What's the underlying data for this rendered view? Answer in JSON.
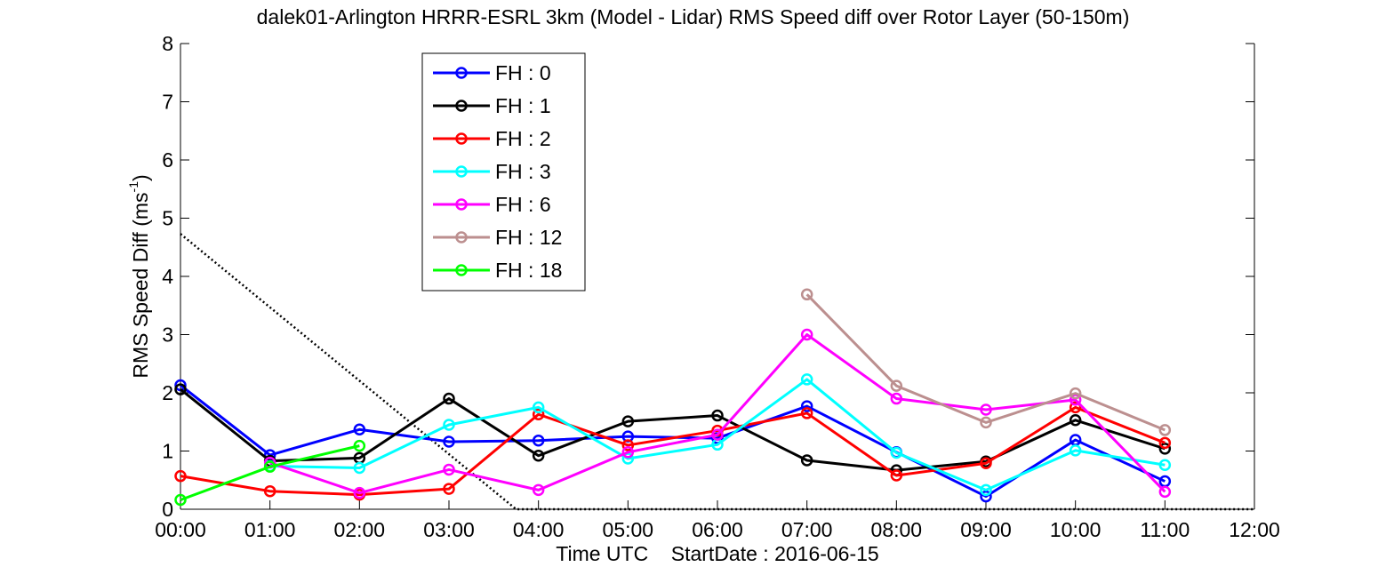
{
  "chart_data": {
    "type": "line",
    "title": "dalek01-Arlington HRRR-ESRL 3km (Model - Lidar) RMS Speed diff over Rotor Layer (50-150m)",
    "xlabel": "Time UTC    StartDate : 2016-06-15",
    "ylabel_main": "RMS Speed Diff (ms",
    "ylabel_sup": "-1",
    "ylabel_close": ")",
    "x_ticks": [
      "00:00",
      "01:00",
      "02:00",
      "03:00",
      "04:00",
      "05:00",
      "06:00",
      "07:00",
      "08:00",
      "09:00",
      "10:00",
      "11:00",
      "12:00"
    ],
    "y_ticks": [
      "0",
      "1",
      "2",
      "3",
      "4",
      "5",
      "6",
      "7",
      "8"
    ],
    "xlim": [
      0,
      12
    ],
    "ylim": [
      0,
      8
    ],
    "grid": false,
    "legend_position": "top-left",
    "series": [
      {
        "name": "FH : 0",
        "color": "#0000ff",
        "x": [
          0,
          1,
          2,
          3,
          4,
          5,
          6,
          7,
          8,
          9,
          10,
          11
        ],
        "values": [
          2.13,
          0.93,
          1.37,
          1.16,
          1.18,
          1.25,
          1.22,
          1.77,
          0.98,
          0.22,
          1.19,
          0.48
        ]
      },
      {
        "name": "FH : 1",
        "color": "#000000",
        "x": [
          0,
          1,
          2,
          3,
          4,
          5,
          6,
          7,
          8,
          9,
          10,
          11
        ],
        "values": [
          2.06,
          0.83,
          0.88,
          1.9,
          0.92,
          1.51,
          1.61,
          0.84,
          0.67,
          0.82,
          1.53,
          1.04
        ]
      },
      {
        "name": "FH : 2",
        "color": "#ff0000",
        "x": [
          0,
          1,
          2,
          3,
          4,
          5,
          6,
          7,
          8,
          9,
          10,
          11
        ],
        "values": [
          0.57,
          0.31,
          0.25,
          0.35,
          1.63,
          1.1,
          1.35,
          1.65,
          0.58,
          0.79,
          1.75,
          1.14
        ]
      },
      {
        "name": "FH : 3",
        "color": "#00ffff",
        "x": [
          1,
          2,
          3,
          4,
          5,
          6,
          7,
          8,
          9,
          10,
          11
        ],
        "values": [
          0.74,
          0.71,
          1.45,
          1.75,
          0.87,
          1.11,
          2.23,
          0.97,
          0.33,
          1.01,
          0.76
        ]
      },
      {
        "name": "FH : 6",
        "color": "#ff00ff",
        "x": [
          1,
          2,
          3,
          4,
          5,
          6,
          7,
          8,
          9,
          10,
          11
        ],
        "values": [
          0.8,
          0.28,
          0.68,
          0.33,
          0.98,
          1.28,
          3.0,
          1.9,
          1.71,
          1.88,
          0.3
        ]
      },
      {
        "name": "FH : 12",
        "color": "#bc8f8f",
        "x": [
          7,
          8,
          9,
          10,
          11
        ],
        "values": [
          3.69,
          2.12,
          1.49,
          1.99,
          1.36
        ]
      },
      {
        "name": "FH : 18",
        "color": "#00ff00",
        "x": [
          0,
          1,
          2
        ],
        "values": [
          0.16,
          0.73,
          1.09
        ]
      }
    ],
    "reference_line": {
      "color": "#000000",
      "style": "dotted",
      "x": [
        0,
        3.75,
        12
      ],
      "values": [
        4.73,
        0,
        0
      ]
    }
  }
}
